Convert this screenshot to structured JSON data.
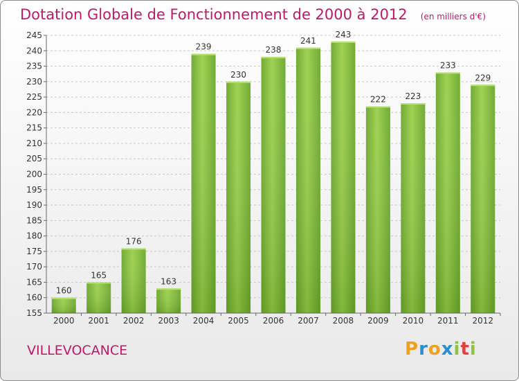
{
  "chart_data": {
    "type": "bar",
    "title": "Dotation Globale de Fonctionnement de 2000 à 2012",
    "unit_note": "(en milliers d'€)",
    "categories": [
      "2000",
      "2001",
      "2002",
      "2003",
      "2004",
      "2005",
      "2006",
      "2007",
      "2008",
      "2009",
      "2010",
      "2011",
      "2012"
    ],
    "values": [
      160,
      165,
      176,
      163,
      239,
      230,
      238,
      241,
      243,
      222,
      223,
      233,
      229
    ],
    "ylim": [
      155,
      245
    ],
    "yticks": [
      155,
      160,
      165,
      170,
      175,
      180,
      185,
      190,
      195,
      200,
      205,
      210,
      215,
      220,
      225,
      230,
      235,
      240,
      245
    ],
    "grid": true,
    "bar_color": "#7ab833"
  },
  "commune": "VILLEVOCANCE",
  "logo": {
    "letters": [
      "P",
      "r",
      "o",
      "x",
      "i",
      "t",
      "i"
    ],
    "colors": [
      "#f0a020",
      "#2a8fd0",
      "#f0a020",
      "#2a8fd0",
      "#8cc63f",
      "#e04040",
      "#8cc63f"
    ]
  }
}
